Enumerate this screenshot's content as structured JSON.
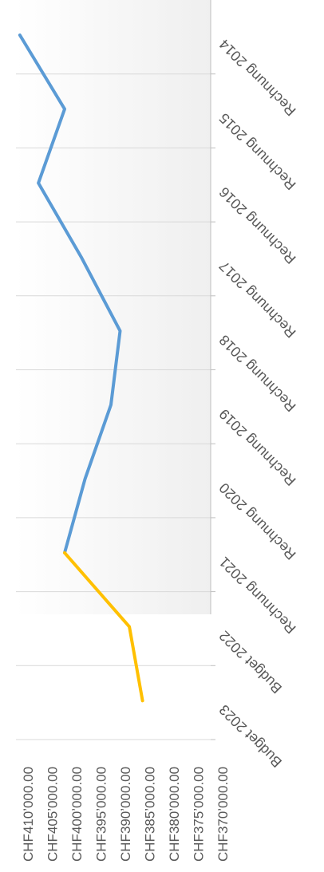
{
  "chart_data": {
    "type": "line",
    "orientation": "rotated-90-clockwise",
    "categories": [
      "Rechnung 2014",
      "Rechnung 2015",
      "Rechnung 2016",
      "Rechnung 2017",
      "Rechnung 2018",
      "Rechnung 2019",
      "Rechnung 2020",
      "Rechnung 2021",
      "Budget 2022",
      "Budget 2023"
    ],
    "series": [
      {
        "color": "#5b9bd5",
        "points": [
          {
            "x": "Rechnung 2014",
            "y": 409200
          },
          {
            "x": "Rechnung 2015",
            "y": 400000
          },
          {
            "x": "Rechnung 2016",
            "y": 405400
          },
          {
            "x": "Rechnung 2017",
            "y": 396600
          },
          {
            "x": "Rechnung 2018",
            "y": 388600
          },
          {
            "x": "Rechnung 2019",
            "y": 390500
          },
          {
            "x": "Rechnung 2020",
            "y": 395800
          },
          {
            "x": "Rechnung 2021",
            "y": 400000
          }
        ]
      },
      {
        "color": "#ffc000",
        "points": [
          {
            "x": "Rechnung 2021",
            "y": 400000
          },
          {
            "x": "Budget 2022",
            "y": 386700
          },
          {
            "x": "Budget 2023",
            "y": 384000
          }
        ]
      }
    ],
    "y_ticks": [
      "CHF410’000.00",
      "CHF405’000.00",
      "CHF400’000.00",
      "CHF395’000.00",
      "CHF390’000.00",
      "CHF385’000.00",
      "CHF380’000.00",
      "CHF375’000.00",
      "CHF370’000.00"
    ],
    "ylim": [
      370000,
      410000
    ],
    "grid": true,
    "plot_background": "#f2f2f2",
    "gridline_color": "#d9d9d9",
    "title": "",
    "xlabel": "",
    "ylabel": ""
  }
}
